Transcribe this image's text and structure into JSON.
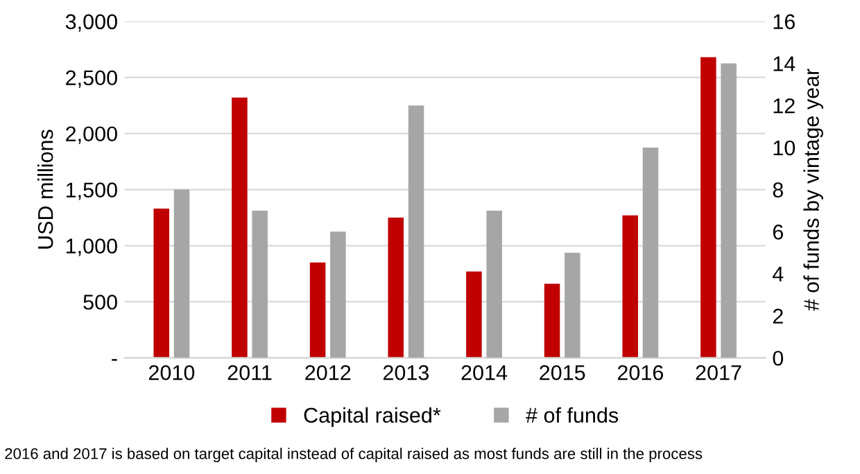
{
  "chart_data": {
    "type": "bar",
    "categories": [
      "2010",
      "2011",
      "2012",
      "2013",
      "2014",
      "2015",
      "2016",
      "2017"
    ],
    "series": [
      {
        "name": "Capital raised*",
        "color": "#c00000",
        "values": [
          1330,
          2320,
          850,
          1250,
          770,
          660,
          1270,
          2680
        ]
      },
      {
        "name": "# of funds",
        "color": "#a6a6a6",
        "axis": "y2",
        "values": [
          8,
          7,
          6,
          12,
          7,
          5,
          10,
          14
        ]
      }
    ],
    "ylabel": "USD millions",
    "y2label": "# of funds by vintage year",
    "ylim": [
      0,
      3000
    ],
    "yticks": [
      {
        "value": 0,
        "label": "-"
      },
      {
        "value": 500,
        "label": "500"
      },
      {
        "value": 1000,
        "label": "1,000"
      },
      {
        "value": 1500,
        "label": "1,500"
      },
      {
        "value": 2000,
        "label": "2,000"
      },
      {
        "value": 2500,
        "label": "2,500"
      },
      {
        "value": 3000,
        "label": "3,000"
      }
    ],
    "y2lim": [
      0,
      16
    ],
    "y2ticks": [
      0,
      2,
      4,
      6,
      8,
      10,
      12,
      14,
      16
    ],
    "grid": "y",
    "legend": "bottom",
    "annotations": [
      "2016 and 2017 is based on target capital instead of capital raised as most funds are still in the process"
    ]
  }
}
